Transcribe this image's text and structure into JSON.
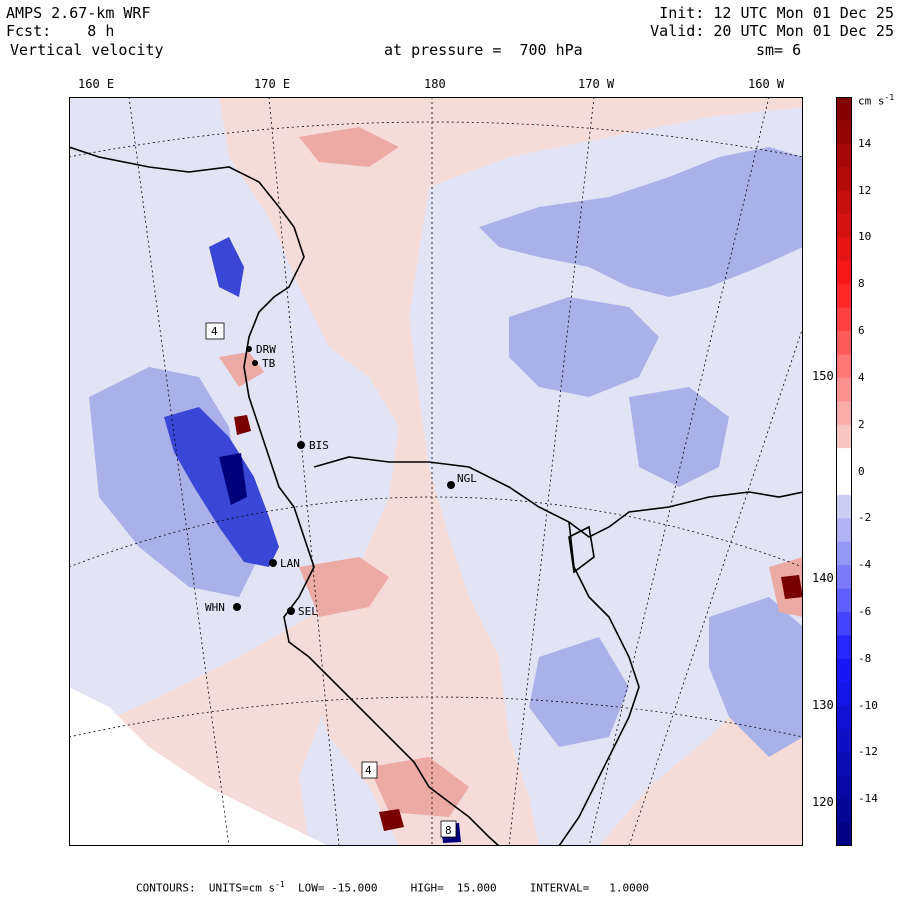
{
  "header": {
    "model": "AMPS 2.67-km WRF",
    "init": "Init: 12 UTC Mon 01 Dec 25",
    "fcst_label": "Fcst:",
    "fcst_value": "8 h",
    "valid": "Valid: 20 UTC Mon 01 Dec 25",
    "field": "Vertical velocity",
    "level": "at pressure =  700 hPa",
    "smooth": "sm= 6"
  },
  "top_longitudes": [
    "160 E",
    "170 E",
    "180",
    "170 W",
    "160 W"
  ],
  "right_longitudes": [
    "150 W",
    "140 W",
    "130 W",
    "120 W"
  ],
  "stations": [
    {
      "id": "BIS"
    },
    {
      "id": "NGL"
    },
    {
      "id": "LAN"
    },
    {
      "id": "WHN"
    },
    {
      "id": "SEL"
    },
    {
      "id": "DRW"
    },
    {
      "id": "TB"
    }
  ],
  "boxed_labels": [
    "4",
    "4",
    "8"
  ],
  "colorbar": {
    "units": "cm s",
    "units_exp": "-1",
    "tick_labels": [
      "14",
      "12",
      "10",
      "8",
      "6",
      "4",
      "2",
      "0",
      "-2",
      "-4",
      "-6",
      "-8",
      "-10",
      "-12",
      "-14"
    ],
    "colors": {
      "pos_max": "#7a0000",
      "pos_mid": "#ff1a1a",
      "pos_low": "#f8d4d0",
      "neg_low": "#dcdcf4",
      "neg_mid": "#1a1aff",
      "neg_max": "#00007a"
    }
  },
  "map_colors": {
    "light_red": "#f6dcd8",
    "med_red": "#ebaaa4",
    "light_blue": "#e2e4f6",
    "med_blue": "#aab0e8",
    "deep_blue": "#3a46d6"
  },
  "footer": {
    "contours": "CONTOURS:  UNITS=cm s",
    "exp": "-1",
    "low": "LOW= -15.000",
    "high": "HIGH=  15.000",
    "interval": "INTERVAL=   1.0000"
  }
}
